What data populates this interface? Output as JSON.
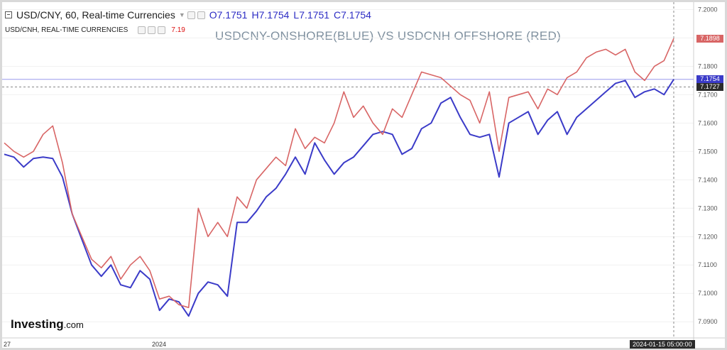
{
  "header": {
    "symbol_label": "USD/CNY, 60, Real-time Currencies",
    "open": "O7.1751",
    "high": "H7.1754",
    "low": "L7.1751",
    "close": "C7.1754"
  },
  "header2": {
    "symbol_label": "USD/CNH, REAL-TIME CURRENCIES",
    "value": "7.19"
  },
  "overlay_title": "USDCNY-ONSHORE(BLUE) VS USDCNH OFFSHORE (RED)",
  "logo": {
    "text": "Investing",
    "suffix": ".com"
  },
  "crosshair_date": "2024-01-15 05:00:00",
  "price_tags": {
    "cnh_last": "7.1898",
    "cny_last": "7.1754",
    "crosshair": "7.1727"
  },
  "colors": {
    "cny": "#3b3bc8",
    "cnh": "#d86565",
    "crosshair_tag": "#2b2b2b"
  },
  "chart_data": {
    "type": "line",
    "x_ticks": [
      "27",
      "2024"
    ],
    "y_ticks": [
      7.09,
      7.1,
      7.11,
      7.12,
      7.13,
      7.14,
      7.15,
      7.16,
      7.17,
      7.18,
      7.19,
      7.2
    ],
    "ylim": [
      7.0843,
      7.2026
    ],
    "n_points": 70,
    "series": [
      {
        "key": "cny",
        "values": [
          7.149,
          7.148,
          7.1445,
          7.1475,
          7.148,
          7.1475,
          7.141,
          7.128,
          7.119,
          7.11,
          7.106,
          7.11,
          7.103,
          7.102,
          7.108,
          7.105,
          7.094,
          7.098,
          7.097,
          7.092,
          7.1,
          7.104,
          7.103,
          7.099,
          7.125,
          7.125,
          7.129,
          7.134,
          7.137,
          7.142,
          7.148,
          7.142,
          7.153,
          7.147,
          7.142,
          7.146,
          7.148,
          7.152,
          7.156,
          7.157,
          7.156,
          7.149,
          7.151,
          7.158,
          7.16,
          7.167,
          7.169,
          7.162,
          7.156,
          7.155,
          7.156,
          7.141,
          7.16,
          7.162,
          7.164,
          7.156,
          7.161,
          7.164,
          7.156,
          7.162,
          7.165,
          7.168,
          7.171,
          7.174,
          7.175,
          7.169,
          7.171,
          7.172,
          7.17,
          7.1754
        ]
      },
      {
        "key": "cnh",
        "values": [
          7.153,
          7.15,
          7.148,
          7.15,
          7.156,
          7.159,
          7.146,
          7.128,
          7.12,
          7.112,
          7.109,
          7.113,
          7.105,
          7.11,
          7.113,
          7.108,
          7.098,
          7.099,
          7.096,
          7.095,
          7.13,
          7.12,
          7.125,
          7.12,
          7.134,
          7.13,
          7.14,
          7.144,
          7.148,
          7.145,
          7.158,
          7.151,
          7.155,
          7.153,
          7.16,
          7.171,
          7.162,
          7.166,
          7.16,
          7.156,
          7.165,
          7.162,
          7.17,
          7.178,
          7.177,
          7.176,
          7.173,
          7.17,
          7.168,
          7.16,
          7.171,
          7.15,
          7.169,
          7.17,
          7.171,
          7.165,
          7.172,
          7.17,
          7.176,
          7.178,
          7.183,
          7.185,
          7.186,
          7.184,
          7.186,
          7.178,
          7.175,
          7.18,
          7.182,
          7.1898
        ]
      }
    ]
  }
}
